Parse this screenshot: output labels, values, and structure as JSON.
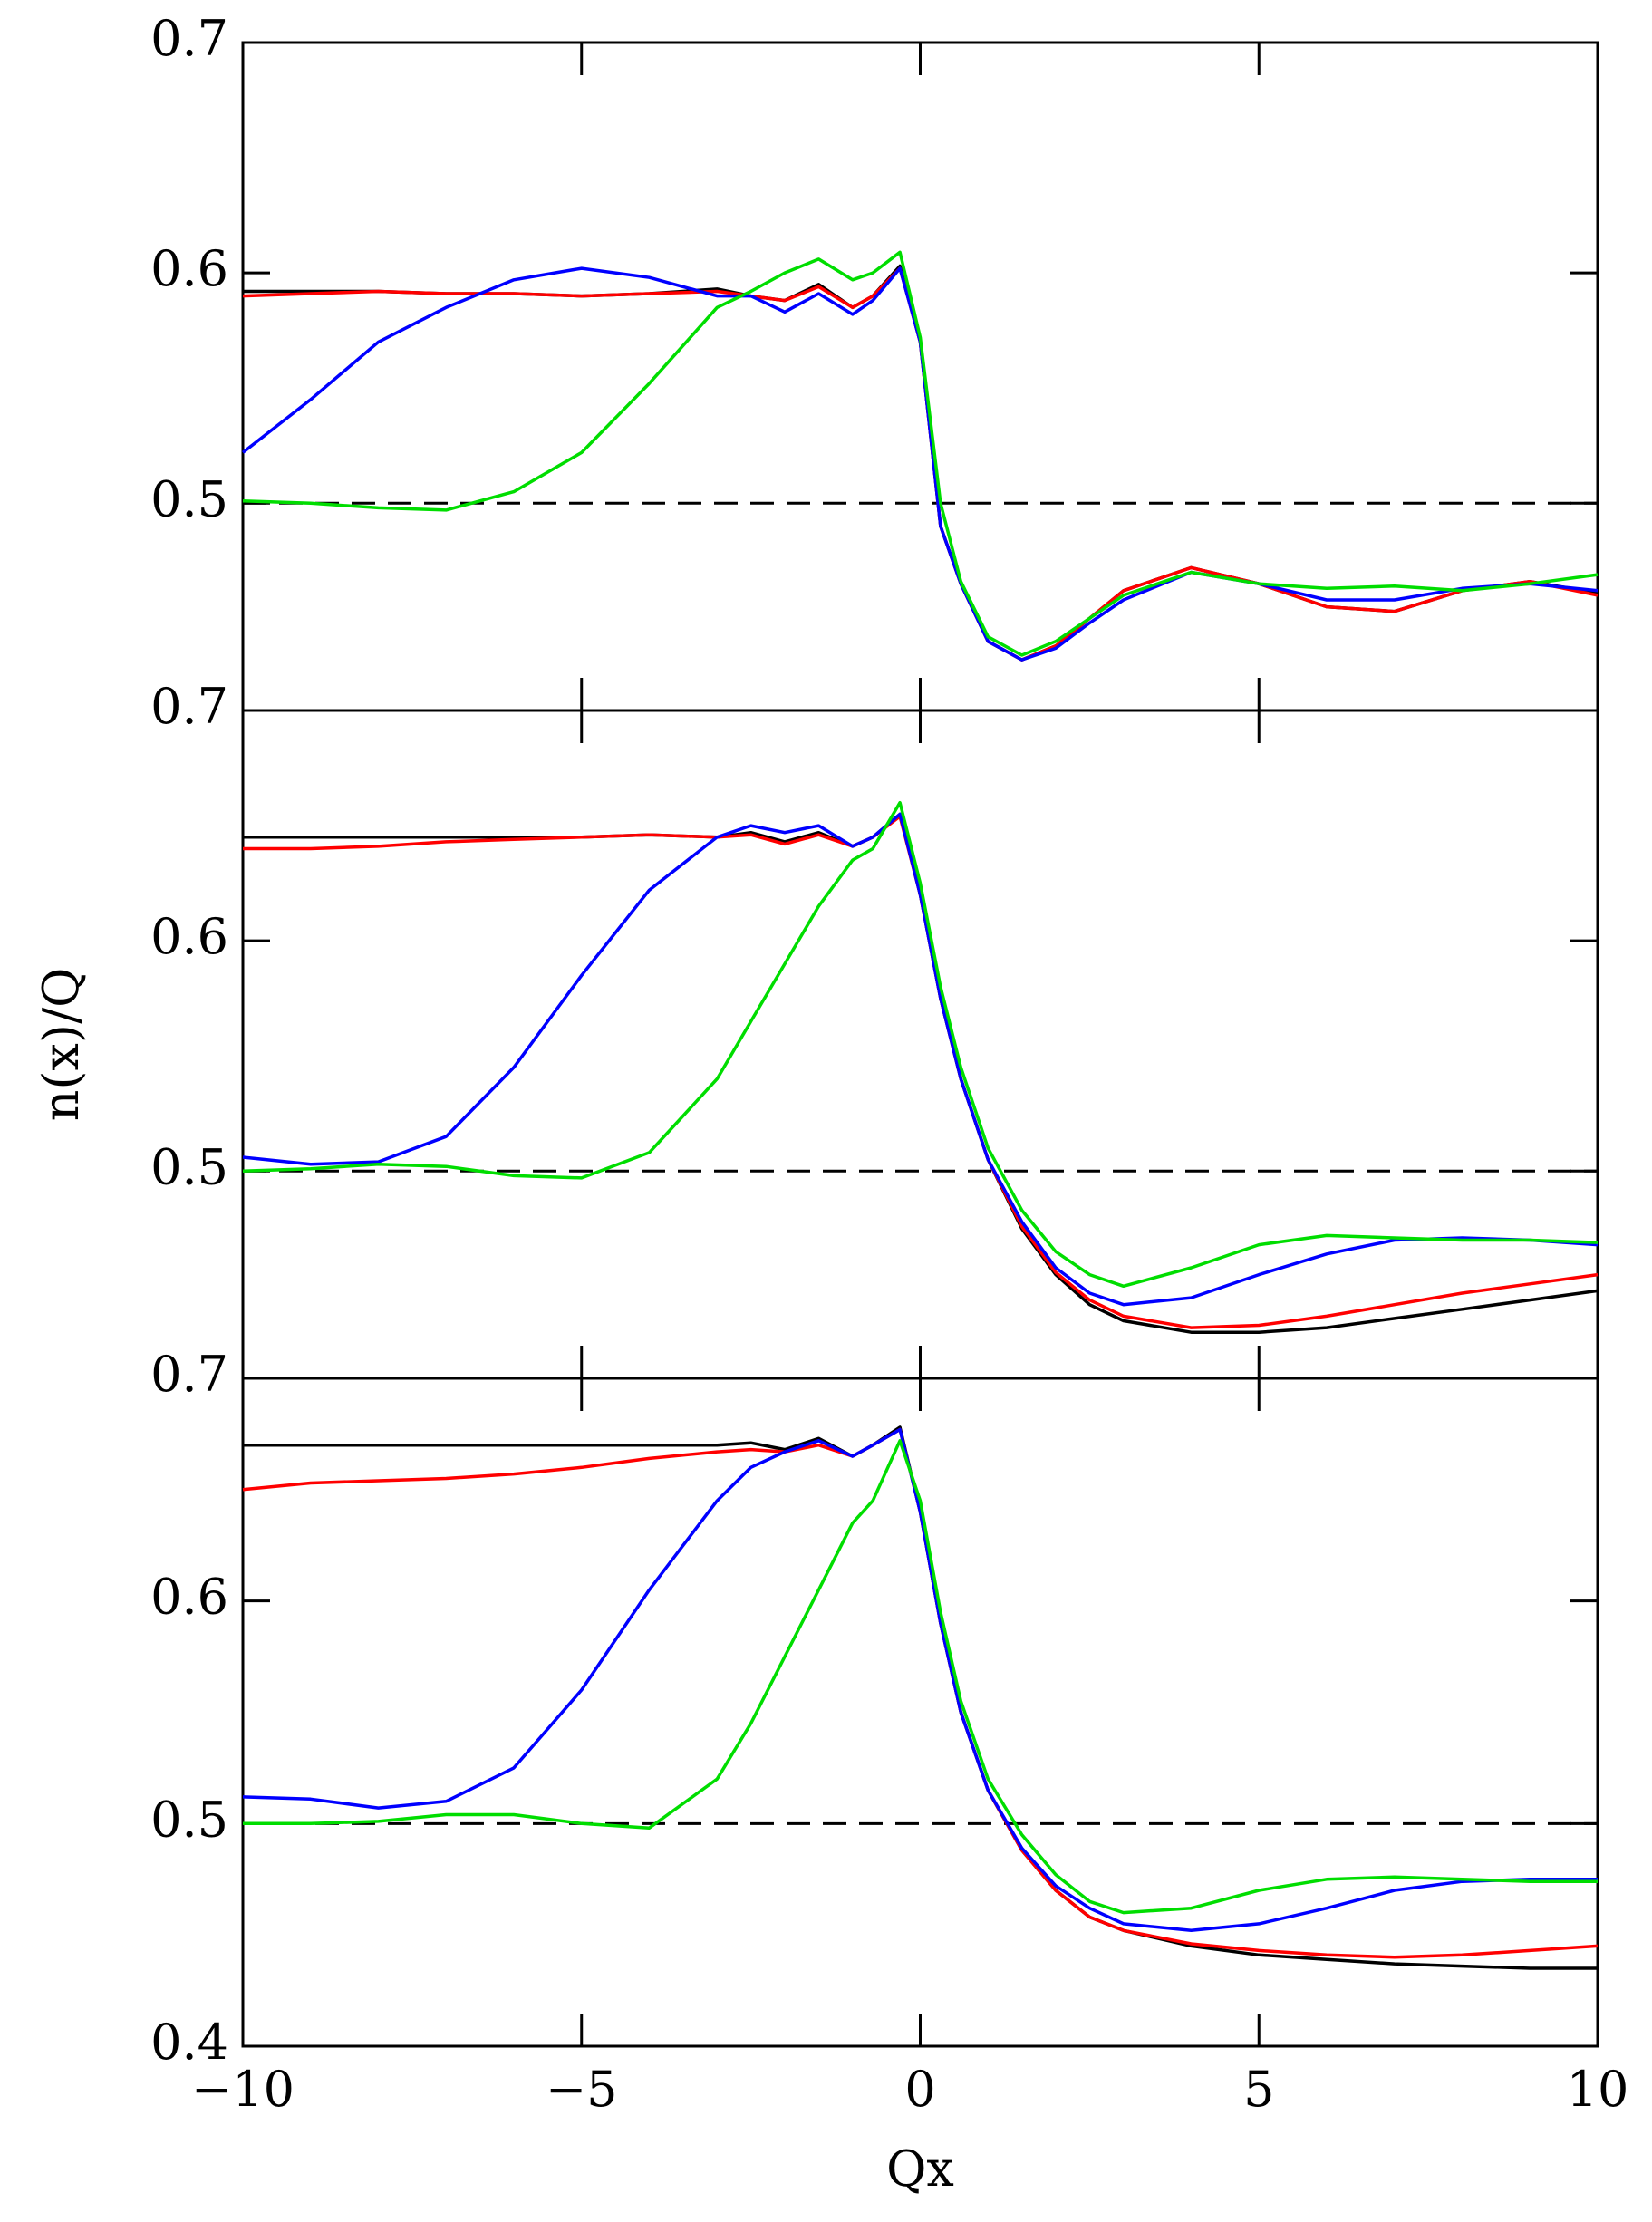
{
  "chart_data": [
    {
      "type": "line",
      "x": [
        -10,
        -9,
        -8,
        -7,
        -6,
        -5,
        -4,
        -3,
        -2.5,
        -2,
        -1.5,
        -1,
        -0.7,
        -0.3,
        0,
        0.3,
        0.6,
        1,
        1.5,
        2,
        2.5,
        3,
        4,
        5,
        6,
        7,
        8,
        9,
        10
      ],
      "xlim": [
        -10,
        10
      ],
      "xticks": [
        -10,
        -5,
        0,
        5,
        10
      ],
      "ylim": [
        0.41,
        0.7
      ],
      "yticks": [
        0.5,
        0.6,
        0.7
      ],
      "reference_line": 0.5,
      "series": [
        {
          "color": "#000000",
          "values": [
            0.592,
            0.592,
            0.592,
            0.591,
            0.591,
            0.59,
            0.591,
            0.593,
            0.59,
            0.588,
            0.595,
            0.585,
            0.59,
            0.603,
            0.57,
            0.49,
            0.465,
            0.44,
            0.432,
            0.438,
            0.45,
            0.462,
            0.472,
            0.465,
            0.455,
            0.453,
            0.462,
            0.466,
            0.461
          ]
        },
        {
          "color": "#ff0000",
          "values": [
            0.59,
            0.591,
            0.592,
            0.591,
            0.591,
            0.59,
            0.591,
            0.592,
            0.59,
            0.588,
            0.594,
            0.585,
            0.59,
            0.602,
            0.57,
            0.49,
            0.465,
            0.44,
            0.432,
            0.438,
            0.45,
            0.462,
            0.472,
            0.465,
            0.455,
            0.453,
            0.462,
            0.466,
            0.46
          ]
        },
        {
          "color": "#0000ff",
          "values": [
            0.522,
            0.545,
            0.57,
            0.585,
            0.597,
            0.602,
            0.598,
            0.59,
            0.59,
            0.583,
            0.591,
            0.582,
            0.588,
            0.602,
            0.57,
            0.49,
            0.465,
            0.44,
            0.432,
            0.437,
            0.448,
            0.458,
            0.47,
            0.465,
            0.458,
            0.458,
            0.463,
            0.465,
            0.462
          ]
        },
        {
          "color": "#00dd00",
          "values": [
            0.501,
            0.5,
            0.498,
            0.497,
            0.505,
            0.522,
            0.552,
            0.585,
            0.592,
            0.6,
            0.606,
            0.597,
            0.6,
            0.609,
            0.572,
            0.5,
            0.466,
            0.442,
            0.434,
            0.44,
            0.45,
            0.46,
            0.47,
            0.465,
            0.463,
            0.464,
            0.462,
            0.465,
            0.469
          ]
        }
      ]
    },
    {
      "type": "line",
      "x": [
        -10,
        -9,
        -8,
        -7,
        -6,
        -5,
        -4,
        -3,
        -2.5,
        -2,
        -1.5,
        -1,
        -0.7,
        -0.3,
        0,
        0.3,
        0.6,
        1,
        1.5,
        2,
        2.5,
        3,
        4,
        5,
        6,
        7,
        8,
        9,
        10
      ],
      "xlim": [
        -10,
        10
      ],
      "xticks": [
        -10,
        -5,
        0,
        5,
        10
      ],
      "ylim": [
        0.41,
        0.7
      ],
      "yticks": [
        0.5,
        0.6,
        0.7
      ],
      "y_label": "n(x)/Q",
      "reference_line": 0.5,
      "series": [
        {
          "color": "#000000",
          "values": [
            0.645,
            0.645,
            0.645,
            0.645,
            0.645,
            0.645,
            0.646,
            0.645,
            0.647,
            0.643,
            0.647,
            0.641,
            0.645,
            0.655,
            0.62,
            0.575,
            0.54,
            0.505,
            0.475,
            0.455,
            0.442,
            0.435,
            0.43,
            0.43,
            0.432,
            0.436,
            0.44,
            0.444,
            0.448
          ]
        },
        {
          "color": "#ff0000",
          "values": [
            0.64,
            0.64,
            0.641,
            0.643,
            0.644,
            0.645,
            0.646,
            0.645,
            0.646,
            0.642,
            0.646,
            0.641,
            0.645,
            0.654,
            0.62,
            0.575,
            0.54,
            0.505,
            0.476,
            0.456,
            0.444,
            0.437,
            0.432,
            0.433,
            0.437,
            0.442,
            0.447,
            0.451,
            0.455
          ]
        },
        {
          "color": "#0000ff",
          "values": [
            0.506,
            0.503,
            0.504,
            0.515,
            0.545,
            0.585,
            0.622,
            0.645,
            0.65,
            0.647,
            0.65,
            0.641,
            0.645,
            0.655,
            0.62,
            0.575,
            0.54,
            0.505,
            0.478,
            0.458,
            0.447,
            0.442,
            0.445,
            0.455,
            0.464,
            0.47,
            0.471,
            0.47,
            0.468
          ]
        },
        {
          "color": "#00dd00",
          "values": [
            0.5,
            0.501,
            0.503,
            0.502,
            0.498,
            0.497,
            0.508,
            0.54,
            0.565,
            0.59,
            0.615,
            0.635,
            0.64,
            0.66,
            0.625,
            0.58,
            0.545,
            0.51,
            0.483,
            0.465,
            0.455,
            0.45,
            0.458,
            0.468,
            0.472,
            0.471,
            0.47,
            0.47,
            0.469
          ]
        }
      ]
    },
    {
      "type": "line",
      "x": [
        -10,
        -9,
        -8,
        -7,
        -6,
        -5,
        -4,
        -3,
        -2.5,
        -2,
        -1.5,
        -1,
        -0.7,
        -0.3,
        0,
        0.3,
        0.6,
        1,
        1.5,
        2,
        2.5,
        3,
        4,
        5,
        6,
        7,
        8,
        9,
        10
      ],
      "xlim": [
        -10,
        10
      ],
      "xticks": [
        {
          "value": -10,
          "label": "−10"
        },
        {
          "value": -5,
          "label": "−5"
        },
        0,
        5,
        10
      ],
      "x_label": "Qx",
      "ylim": [
        0.4,
        0.7
      ],
      "yticks": [
        0.4,
        0.5,
        0.6,
        0.7
      ],
      "reference_line": 0.5,
      "series": [
        {
          "color": "#000000",
          "values": [
            0.67,
            0.67,
            0.67,
            0.67,
            0.67,
            0.67,
            0.67,
            0.67,
            0.671,
            0.668,
            0.673,
            0.665,
            0.67,
            0.678,
            0.64,
            0.59,
            0.55,
            0.515,
            0.488,
            0.47,
            0.458,
            0.452,
            0.445,
            0.441,
            0.439,
            0.437,
            0.436,
            0.435,
            0.435
          ]
        },
        {
          "color": "#ff0000",
          "values": [
            0.65,
            0.653,
            0.654,
            0.655,
            0.657,
            0.66,
            0.664,
            0.667,
            0.668,
            0.667,
            0.67,
            0.665,
            0.67,
            0.677,
            0.64,
            0.59,
            0.55,
            0.515,
            0.488,
            0.47,
            0.458,
            0.452,
            0.446,
            0.443,
            0.441,
            0.44,
            0.441,
            0.443,
            0.445
          ]
        },
        {
          "color": "#0000ff",
          "values": [
            0.512,
            0.511,
            0.507,
            0.51,
            0.525,
            0.56,
            0.605,
            0.645,
            0.66,
            0.667,
            0.672,
            0.665,
            0.67,
            0.677,
            0.64,
            0.59,
            0.55,
            0.515,
            0.489,
            0.472,
            0.462,
            0.455,
            0.452,
            0.455,
            0.462,
            0.47,
            0.474,
            0.475,
            0.475
          ]
        },
        {
          "color": "#00dd00",
          "values": [
            0.5,
            0.5,
            0.501,
            0.504,
            0.504,
            0.5,
            0.498,
            0.52,
            0.545,
            0.575,
            0.605,
            0.635,
            0.645,
            0.672,
            0.645,
            0.595,
            0.555,
            0.52,
            0.495,
            0.477,
            0.465,
            0.46,
            0.462,
            0.47,
            0.475,
            0.476,
            0.475,
            0.474,
            0.474
          ]
        }
      ]
    }
  ]
}
